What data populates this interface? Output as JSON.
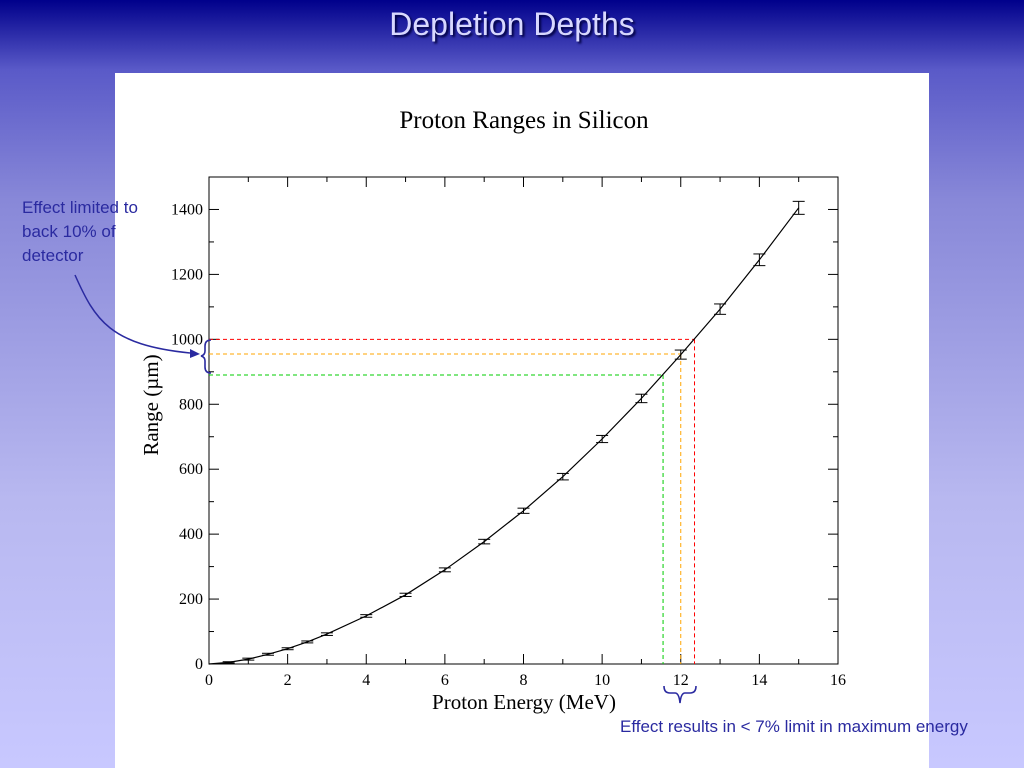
{
  "slide": {
    "title": "Depletion Depths",
    "callout_left": "Effect limited to back 10% of detector",
    "callout_bottom": "Effect results in < 7% limit in maximum energy"
  },
  "colors": {
    "curve": "#000000",
    "red_guide": "#ff0000",
    "orange_guide": "#ffa500",
    "green_guide": "#00cc00",
    "annotation": "#2a2aa0"
  },
  "chart_data": {
    "type": "line",
    "title": "Proton Ranges in Silicon",
    "xlabel": "Proton Energy (MeV)",
    "ylabel": "Range (µm)",
    "xlim": [
      0,
      16
    ],
    "ylim": [
      0,
      1500
    ],
    "xticks": [
      0,
      2,
      4,
      6,
      8,
      10,
      12,
      14,
      16
    ],
    "yticks": [
      0,
      200,
      400,
      600,
      800,
      1000,
      1200,
      1400
    ],
    "grid": false,
    "points": [
      {
        "x": 0.5,
        "y": 5,
        "err": 2
      },
      {
        "x": 1.0,
        "y": 15,
        "err": 3
      },
      {
        "x": 1.5,
        "y": 30,
        "err": 3
      },
      {
        "x": 2.0,
        "y": 47,
        "err": 3
      },
      {
        "x": 2.5,
        "y": 68,
        "err": 3
      },
      {
        "x": 3.0,
        "y": 92,
        "err": 4
      },
      {
        "x": 4.0,
        "y": 148,
        "err": 4
      },
      {
        "x": 5.0,
        "y": 213,
        "err": 5
      },
      {
        "x": 6.0,
        "y": 290,
        "err": 6
      },
      {
        "x": 7.0,
        "y": 377,
        "err": 7
      },
      {
        "x": 8.0,
        "y": 472,
        "err": 8
      },
      {
        "x": 9.0,
        "y": 577,
        "err": 10
      },
      {
        "x": 10.0,
        "y": 693,
        "err": 11
      },
      {
        "x": 11.0,
        "y": 818,
        "err": 13
      },
      {
        "x": 12.0,
        "y": 953,
        "err": 14
      },
      {
        "x": 13.0,
        "y": 1093,
        "err": 16
      },
      {
        "x": 14.0,
        "y": 1245,
        "err": 18
      },
      {
        "x": 15.0,
        "y": 1405,
        "err": 20
      }
    ],
    "guides": [
      {
        "color": "red",
        "x": 12.35,
        "y": 1000
      },
      {
        "color": "orange",
        "x": 12.0,
        "y": 955
      },
      {
        "color": "green",
        "x": 11.55,
        "y": 890
      }
    ]
  }
}
